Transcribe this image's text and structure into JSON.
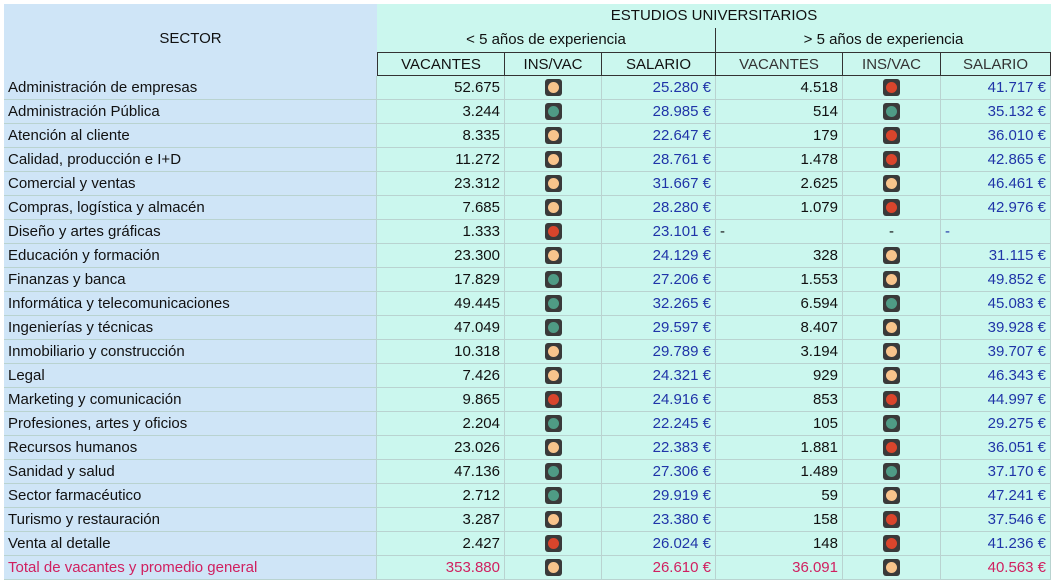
{
  "header": {
    "sector": "SECTOR",
    "group": "ESTUDIOS UNIVERSITARIOS",
    "sub": [
      "< 5 años de experiencia",
      "> 5 años de experiencia"
    ],
    "columns": [
      "VACANTES",
      "INS/VAC",
      "SALARIO",
      "VACANTES",
      "INS/VAC",
      "SALARIO"
    ]
  },
  "table": {
    "rows": [
      {
        "sector": "Administración de empresas",
        "cells": [
          "52.675",
          {
            "color": "#f8c48c"
          },
          "25.280 €",
          "4.518",
          {
            "color": "#d9452c"
          },
          "41.717 €"
        ]
      },
      {
        "sector": "Administración Pública",
        "cells": [
          "3.244",
          {
            "color": "#4f9b85"
          },
          "28.985 €",
          "514",
          {
            "color": "#4f9b85"
          },
          "35.132 €"
        ]
      },
      {
        "sector": "Atención al cliente",
        "cells": [
          "8.335",
          {
            "color": "#f8c48c"
          },
          "22.647 €",
          "179",
          {
            "color": "#d9452c"
          },
          "36.010 €"
        ]
      },
      {
        "sector": "Calidad, producción e I+D",
        "cells": [
          "11.272",
          {
            "color": "#f8c48c"
          },
          "28.761 €",
          "1.478",
          {
            "color": "#d9452c"
          },
          "42.865 €"
        ]
      },
      {
        "sector": "Comercial y ventas",
        "cells": [
          "23.312",
          {
            "color": "#f8c48c"
          },
          "31.667 €",
          "2.625",
          {
            "color": "#f8c48c"
          },
          "46.461 €"
        ]
      },
      {
        "sector": "Compras, logística y almacén",
        "cells": [
          "7.685",
          {
            "color": "#f8c48c"
          },
          "28.280 €",
          "1.079",
          {
            "color": "#d9452c"
          },
          "42.976 €"
        ]
      },
      {
        "sector": "Diseño y artes gráficas",
        "cells": [
          "1.333",
          {
            "color": "#d9452c"
          },
          "23.101 €",
          "-",
          "-",
          "-"
        ]
      },
      {
        "sector": "Educación y formación",
        "cells": [
          "23.300",
          {
            "color": "#f8c48c"
          },
          "24.129 €",
          "328",
          {
            "color": "#f8c48c"
          },
          "31.115 €"
        ]
      },
      {
        "sector": "Finanzas y banca",
        "cells": [
          "17.829",
          {
            "color": "#4f9b85"
          },
          "27.206 €",
          "1.553",
          {
            "color": "#f8c48c"
          },
          "49.852 €"
        ]
      },
      {
        "sector": "Informática y telecomunicaciones",
        "cells": [
          "49.445",
          {
            "color": "#4f9b85"
          },
          "32.265 €",
          "6.594",
          {
            "color": "#4f9b85"
          },
          "45.083 €"
        ]
      },
      {
        "sector": "Ingenierías y técnicas",
        "cells": [
          "47.049",
          {
            "color": "#4f9b85"
          },
          "29.597 €",
          "8.407",
          {
            "color": "#f8c48c"
          },
          "39.928 €"
        ]
      },
      {
        "sector": "Inmobiliario y construcción",
        "cells": [
          "10.318",
          {
            "color": "#f8c48c"
          },
          "29.789 €",
          "3.194",
          {
            "color": "#f8c48c"
          },
          "39.707 €"
        ]
      },
      {
        "sector": "Legal",
        "cells": [
          "7.426",
          {
            "color": "#f8c48c"
          },
          "24.321 €",
          "929",
          {
            "color": "#f8c48c"
          },
          "46.343 €"
        ]
      },
      {
        "sector": "Marketing y comunicación",
        "cells": [
          "9.865",
          {
            "color": "#d9452c"
          },
          "24.916 €",
          "853",
          {
            "color": "#d9452c"
          },
          "44.997 €"
        ]
      },
      {
        "sector": "Profesiones, artes y oficios",
        "cells": [
          "2.204",
          {
            "color": "#4f9b85"
          },
          "22.245 €",
          "105",
          {
            "color": "#4f9b85"
          },
          "29.275 €"
        ]
      },
      {
        "sector": "Recursos humanos",
        "cells": [
          "23.026",
          {
            "color": "#f8c48c"
          },
          "22.383 €",
          "1.881",
          {
            "color": "#d9452c"
          },
          "36.051 €"
        ]
      },
      {
        "sector": "Sanidad y salud",
        "cells": [
          "47.136",
          {
            "color": "#4f9b85"
          },
          "27.306 €",
          "1.489",
          {
            "color": "#4f9b85"
          },
          "37.170 €"
        ]
      },
      {
        "sector": "Sector farmacéutico",
        "cells": [
          "2.712",
          {
            "color": "#4f9b85"
          },
          "29.919 €",
          "59",
          {
            "color": "#f8c48c"
          },
          "47.241 €"
        ]
      },
      {
        "sector": "Turismo y restauración",
        "cells": [
          "3.287",
          {
            "color": "#f8c48c"
          },
          "23.380 €",
          "158",
          {
            "color": "#d9452c"
          },
          "37.546 €"
        ]
      },
      {
        "sector": "Venta al detalle",
        "cells": [
          "2.427",
          {
            "color": "#d9452c"
          },
          "26.024 €",
          "148",
          {
            "color": "#d9452c"
          },
          "41.236 €"
        ]
      },
      {
        "sector": "Total de vacantes y promedio general",
        "cells": [
          "353.880",
          {
            "color": "#f8c48c"
          },
          "26.610 €",
          "36.091",
          {
            "color": "#f8c48c"
          },
          "40.563 €"
        ]
      }
    ]
  }
}
